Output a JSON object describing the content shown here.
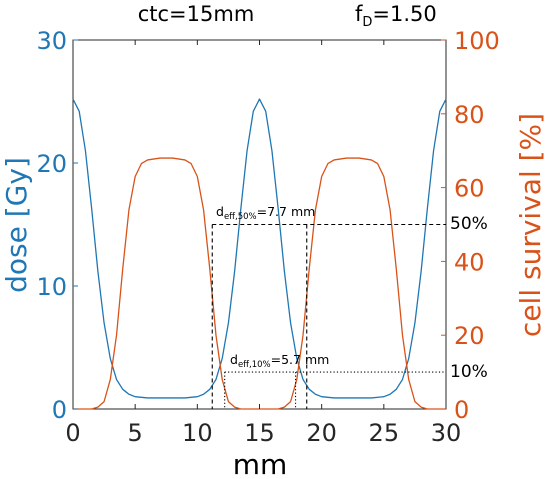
{
  "colors": {
    "dose": "#1f77b4",
    "survival": "#d95319",
    "axis": "#262626",
    "ref": "#000000"
  },
  "chart_data": {
    "type": "line",
    "title": {
      "ctc": "ctc=15mm",
      "fd_main": "f",
      "fd_sub": "D",
      "fd_value": "=1.50"
    },
    "xlabel": "mm",
    "ylabel_left": "dose [Gy]",
    "ylabel_right": "cell survival [%]",
    "xlim": [
      0,
      30
    ],
    "ylim_left": [
      0,
      30
    ],
    "ylim_right": [
      0,
      100
    ],
    "xticks": [
      "0",
      "5",
      "10",
      "15",
      "20",
      "25",
      "30"
    ],
    "yticks_left": [
      "0",
      "10",
      "20",
      "30"
    ],
    "yticks_right": [
      "0",
      "20",
      "40",
      "60",
      "80",
      "100"
    ],
    "grid": false,
    "series": [
      {
        "axis": "left",
        "x": [
          0,
          0.5,
          1,
          1.5,
          2,
          2.5,
          3,
          3.5,
          4,
          4.5,
          5,
          6,
          7,
          8,
          9,
          10,
          10.5,
          11,
          11.5,
          12,
          12.5,
          13,
          13.5,
          14,
          14.5,
          15,
          15.5,
          16,
          16.5,
          17,
          17.5,
          18,
          18.5,
          19,
          19.5,
          20,
          21,
          22,
          23,
          24,
          25,
          25.5,
          26,
          26.5,
          27,
          27.5,
          28,
          28.5,
          29,
          29.5,
          30
        ],
        "y": [
          25.2,
          24.2,
          21.0,
          16.3,
          11.2,
          7.0,
          4.1,
          2.4,
          1.6,
          1.2,
          1.0,
          0.9,
          0.9,
          0.9,
          0.9,
          1.0,
          1.2,
          1.6,
          2.4,
          4.1,
          7.0,
          11.2,
          16.3,
          21.0,
          24.2,
          25.2,
          24.2,
          21.0,
          16.3,
          11.2,
          7.0,
          4.1,
          2.4,
          1.6,
          1.2,
          1.0,
          0.9,
          0.9,
          0.9,
          0.9,
          1.0,
          1.2,
          1.6,
          2.4,
          4.1,
          7.0,
          11.2,
          16.3,
          21.0,
          24.2,
          25.2
        ]
      },
      {
        "axis": "right",
        "x": [
          0,
          1.5,
          2,
          2.5,
          3,
          3.5,
          4,
          4.5,
          5,
          5.5,
          6,
          7,
          8,
          9,
          9.5,
          10,
          10.5,
          11,
          11.5,
          12,
          12.5,
          13,
          13.5,
          14,
          15,
          16,
          16.5,
          17,
          17.5,
          18,
          18.5,
          19,
          19.5,
          20,
          20.5,
          21,
          22,
          23,
          24,
          24.5,
          25,
          25.5,
          26,
          26.5,
          27,
          27.5,
          28,
          28.5,
          29,
          30
        ],
        "y": [
          0,
          0,
          0.5,
          2,
          8,
          20,
          38,
          54,
          63,
          66.5,
          67.5,
          68,
          68,
          67.5,
          66.5,
          63,
          54,
          38,
          20,
          8,
          2,
          0.5,
          0,
          0,
          0,
          0,
          0,
          0.5,
          2,
          8,
          20,
          38,
          54,
          63,
          66.5,
          67.5,
          68,
          68,
          67.5,
          66.5,
          63,
          54,
          38,
          20,
          8,
          2,
          0.5,
          0,
          0,
          0
        ]
      }
    ],
    "annotations": {
      "d50": {
        "main": "d",
        "sub": "eff,50%",
        "value": "=7.7 mm",
        "level_pct": 50,
        "x_left": 11.2,
        "x_right": 18.8
      },
      "d10": {
        "main": "d",
        "sub": "eff,10%",
        "value": "=5.7 mm",
        "level_pct": 10,
        "x_left": 12.2,
        "x_right": 17.9
      },
      "label_50": "50%",
      "label_10": "10%"
    }
  }
}
